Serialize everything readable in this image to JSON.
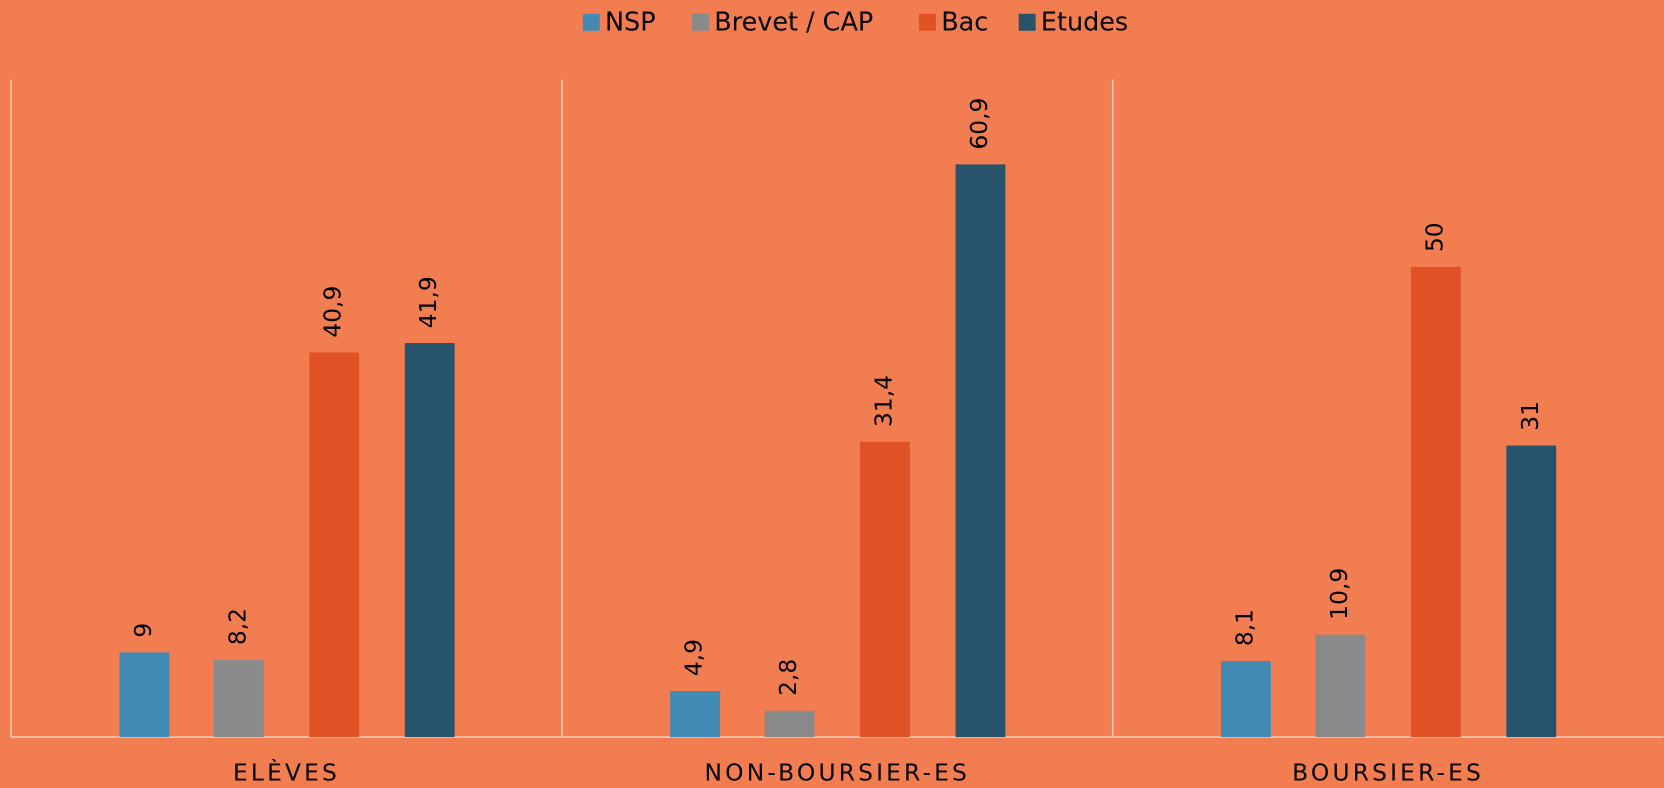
{
  "chart_data": {
    "type": "bar",
    "categories": [
      "ELÈVES",
      "NON-BOURSIER-ES",
      "BOURSIER-ES"
    ],
    "series": [
      {
        "name": "NSP",
        "color": "#418ab3",
        "values": [
          9,
          4.9,
          8.1
        ],
        "value_labels": [
          "9",
          "4,9",
          "8,1"
        ]
      },
      {
        "name": "Brevet / CAP",
        "color": "#8a8a8a",
        "values": [
          8.2,
          2.8,
          10.9
        ],
        "value_labels": [
          "8,2",
          "2,8",
          "10,9"
        ]
      },
      {
        "name": "Bac",
        "color": "#e05225",
        "values": [
          40.9,
          31.4,
          50
        ],
        "value_labels": [
          "40,9",
          "31,4",
          "50"
        ]
      },
      {
        "name": "Etudes",
        "color": "#27546b",
        "values": [
          41.9,
          60.9,
          31
        ],
        "value_labels": [
          "41,9",
          "60,9",
          "31"
        ]
      }
    ],
    "legend": "top"
  }
}
